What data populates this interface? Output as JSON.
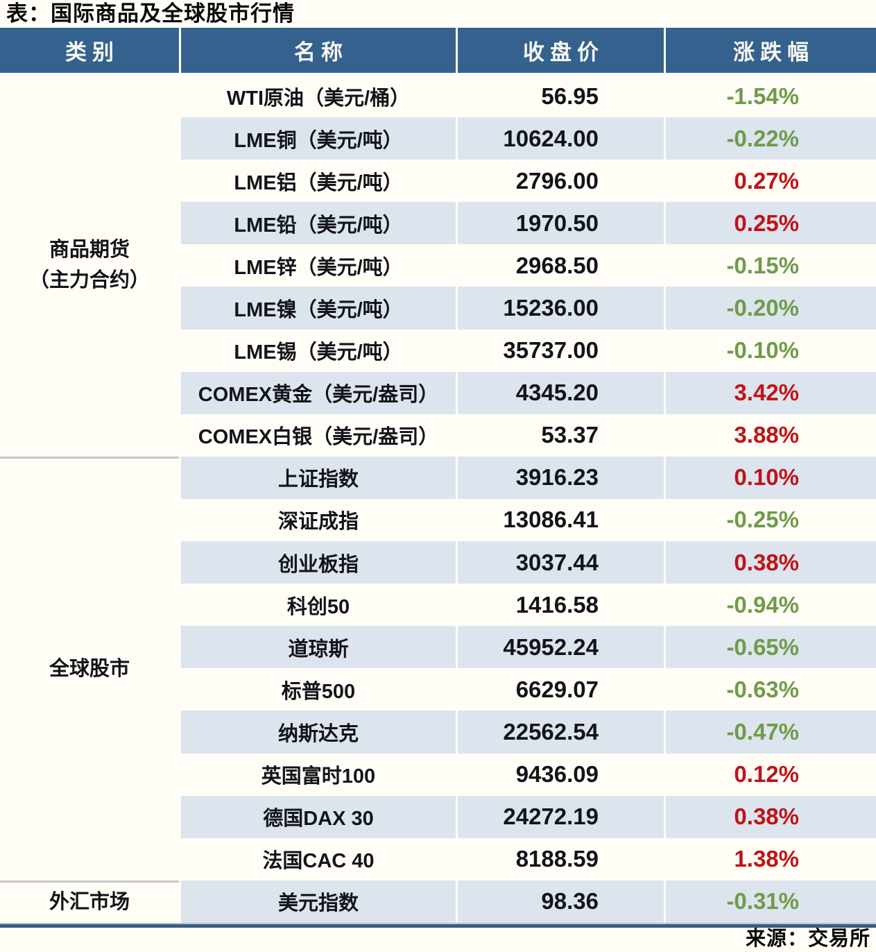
{
  "title": "表：国际商品及全球股市行情",
  "source": "来源：交易所",
  "colors": {
    "page_bg": "#fffdf6",
    "header_bg": "#35618e",
    "header_text": "#f7f8f2",
    "stripe_blue": "#dce4ee",
    "up_red": "#bf1317",
    "down_green": "#6f9b49",
    "bottom_bar": "#3d5c80",
    "group_separator": "#c7c9cb",
    "body_text": "#131419"
  },
  "chart_data": {
    "type": "table",
    "title": "表：国际商品及全球股市行情",
    "headers": [
      "类别",
      "名称",
      "收盘价",
      "涨跌幅"
    ],
    "groups": [
      {
        "category_lines": [
          "商品期货",
          "（主力合约）"
        ],
        "rows": [
          {
            "name": "WTI原油（美元/桶）",
            "close": "56.95",
            "change": "-1.54%",
            "direction": "down"
          },
          {
            "name": "LME铜（美元/吨）",
            "close": "10624.00",
            "change": "-0.22%",
            "direction": "down"
          },
          {
            "name": "LME铝（美元/吨）",
            "close": "2796.00",
            "change": "0.27%",
            "direction": "up"
          },
          {
            "name": "LME铅（美元/吨）",
            "close": "1970.50",
            "change": "0.25%",
            "direction": "up"
          },
          {
            "name": "LME锌（美元/吨）",
            "close": "2968.50",
            "change": "-0.15%",
            "direction": "down"
          },
          {
            "name": "LME镍（美元/吨）",
            "close": "15236.00",
            "change": "-0.20%",
            "direction": "down"
          },
          {
            "name": "LME锡（美元/吨）",
            "close": "35737.00",
            "change": "-0.10%",
            "direction": "down"
          },
          {
            "name": "COMEX黄金（美元/盎司）",
            "close": "4345.20",
            "change": "3.42%",
            "direction": "up"
          },
          {
            "name": "COMEX白银（美元/盎司）",
            "close": "53.37",
            "change": "3.88%",
            "direction": "up"
          }
        ]
      },
      {
        "category_lines": [
          "全球股市"
        ],
        "rows": [
          {
            "name": "上证指数",
            "close": "3916.23",
            "change": "0.10%",
            "direction": "up"
          },
          {
            "name": "深证成指",
            "close": "13086.41",
            "change": "-0.25%",
            "direction": "down"
          },
          {
            "name": "创业板指",
            "close": "3037.44",
            "change": "0.38%",
            "direction": "up"
          },
          {
            "name": "科创50",
            "close": "1416.58",
            "change": "-0.94%",
            "direction": "down"
          },
          {
            "name": "道琼斯",
            "close": "45952.24",
            "change": "-0.65%",
            "direction": "down"
          },
          {
            "name": "标普500",
            "close": "6629.07",
            "change": "-0.63%",
            "direction": "down"
          },
          {
            "name": "纳斯达克",
            "close": "22562.54",
            "change": "-0.47%",
            "direction": "down"
          },
          {
            "name": "英国富时100",
            "close": "9436.09",
            "change": "0.12%",
            "direction": "up"
          },
          {
            "name": "德国DAX 30",
            "close": "24272.19",
            "change": "0.38%",
            "direction": "up"
          },
          {
            "name": "法国CAC 40",
            "close": "8188.59",
            "change": "1.38%",
            "direction": "up"
          }
        ]
      },
      {
        "category_lines": [
          "外汇市场"
        ],
        "rows": [
          {
            "name": "美元指数",
            "close": "98.36",
            "change": "-0.31%",
            "direction": "down"
          }
        ]
      }
    ]
  }
}
